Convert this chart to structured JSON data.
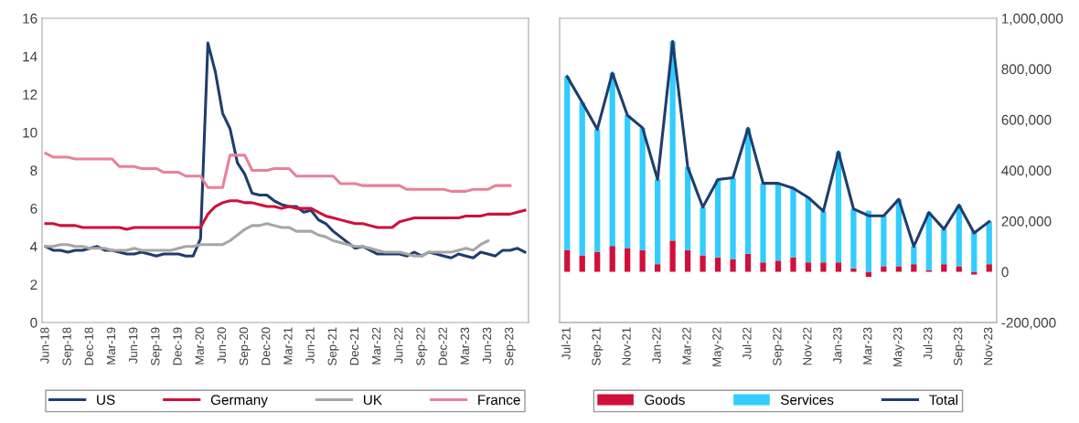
{
  "chart_data": [
    {
      "type": "line",
      "categories": [
        "Jun-18",
        null,
        null,
        "Sep-18",
        null,
        null,
        "Dec-18",
        null,
        null,
        "Mar-19",
        null,
        null,
        "Jun-19",
        null,
        null,
        "Sep-19",
        null,
        null,
        "Dec-19",
        null,
        null,
        "Mar-20",
        null,
        null,
        "Jun-20",
        null,
        null,
        "Sep-20",
        null,
        null,
        "Dec-20",
        null,
        null,
        "Mar-21",
        null,
        null,
        "Jun-21",
        null,
        null,
        "Sep-21",
        null,
        null,
        "Dec-21",
        null,
        null,
        "Mar-22",
        null,
        null,
        "Jun-22",
        null,
        null,
        "Sep-22",
        null,
        null,
        "Dec-22",
        null,
        null,
        "Mar-23",
        null,
        null,
        "Jun-23",
        null,
        null,
        "Sep-23",
        null,
        null
      ],
      "ylim": [
        0,
        16
      ],
      "yticks": [
        0,
        2,
        4,
        6,
        8,
        10,
        12,
        14,
        16
      ],
      "grid": false,
      "legend": "bottom",
      "marker": "none",
      "line_style": "solid",
      "series": [
        {
          "name": "US",
          "color": "#1f3d6e",
          "values": [
            4.0,
            3.8,
            3.8,
            3.7,
            3.8,
            3.8,
            3.9,
            4.0,
            3.8,
            3.8,
            3.7,
            3.6,
            3.6,
            3.7,
            3.6,
            3.5,
            3.6,
            3.6,
            3.6,
            3.5,
            3.5,
            4.4,
            14.7,
            13.2,
            11.0,
            10.2,
            8.4,
            7.8,
            6.8,
            6.7,
            6.7,
            6.4,
            6.2,
            6.1,
            6.1,
            5.8,
            5.9,
            5.4,
            5.2,
            4.8,
            4.5,
            4.2,
            3.9,
            4.0,
            3.8,
            3.6,
            3.6,
            3.6,
            3.6,
            3.5,
            3.7,
            3.5,
            3.7,
            3.6,
            3.5,
            3.4,
            3.6,
            3.5,
            3.4,
            3.7,
            3.6,
            3.5,
            3.8,
            3.8,
            3.9,
            3.7
          ]
        },
        {
          "name": "Germany",
          "color": "#d0103a",
          "values": [
            5.2,
            5.2,
            5.1,
            5.1,
            5.1,
            5.0,
            5.0,
            5.0,
            5.0,
            5.0,
            5.0,
            4.9,
            5.0,
            5.0,
            5.0,
            5.0,
            5.0,
            5.0,
            5.0,
            5.0,
            5.0,
            5.0,
            5.7,
            6.1,
            6.3,
            6.4,
            6.4,
            6.3,
            6.3,
            6.2,
            6.1,
            6.1,
            6.0,
            6.1,
            6.0,
            6.0,
            6.0,
            5.8,
            5.6,
            5.5,
            5.4,
            5.3,
            5.2,
            5.2,
            5.1,
            5.0,
            5.0,
            5.0,
            5.3,
            5.4,
            5.5,
            5.5,
            5.5,
            5.5,
            5.5,
            5.5,
            5.5,
            5.6,
            5.6,
            5.6,
            5.7,
            5.7,
            5.7,
            5.7,
            5.8,
            5.9
          ]
        },
        {
          "name": "UK",
          "color": "#a6a6a6",
          "values": [
            4.0,
            4.0,
            4.1,
            4.1,
            4.0,
            4.0,
            3.9,
            3.9,
            3.9,
            3.8,
            3.8,
            3.8,
            3.9,
            3.8,
            3.8,
            3.8,
            3.8,
            3.8,
            3.9,
            4.0,
            4.0,
            4.1,
            4.1,
            4.1,
            4.1,
            4.3,
            4.6,
            4.9,
            5.1,
            5.1,
            5.2,
            5.1,
            5.0,
            5.0,
            4.8,
            4.8,
            4.8,
            4.6,
            4.5,
            4.3,
            4.2,
            4.1,
            4.0,
            4.0,
            3.9,
            3.8,
            3.7,
            3.7,
            3.7,
            3.6,
            3.5,
            3.5,
            3.7,
            3.7,
            3.7,
            3.7,
            3.8,
            3.9,
            3.8,
            4.1,
            4.3,
            null,
            null,
            null,
            null,
            null
          ]
        },
        {
          "name": "France",
          "color": "#e8819a",
          "values": [
            8.9,
            8.7,
            8.7,
            8.7,
            8.6,
            8.6,
            8.6,
            8.6,
            8.6,
            8.6,
            8.2,
            8.2,
            8.2,
            8.1,
            8.1,
            8.1,
            7.9,
            7.9,
            7.9,
            7.7,
            7.7,
            7.7,
            7.1,
            7.1,
            7.1,
            8.8,
            8.8,
            8.8,
            8.0,
            8.0,
            8.0,
            8.1,
            8.1,
            8.1,
            7.7,
            7.7,
            7.7,
            7.7,
            7.7,
            7.7,
            7.3,
            7.3,
            7.3,
            7.2,
            7.2,
            7.2,
            7.2,
            7.2,
            7.2,
            7.0,
            7.0,
            7.0,
            7.0,
            7.0,
            7.0,
            6.9,
            6.9,
            6.9,
            7.0,
            7.0,
            7.0,
            7.2,
            7.2,
            7.2,
            null,
            null
          ]
        }
      ]
    },
    {
      "type": "bar",
      "stacked": true,
      "categories": [
        "Jul-21",
        null,
        "Sep-21",
        null,
        "Nov-21",
        null,
        "Jan-22",
        null,
        "Mar-22",
        null,
        "May-22",
        null,
        "Jul-22",
        null,
        "Sep-22",
        null,
        "Nov-22",
        null,
        "Jan-23",
        null,
        "Mar-23",
        null,
        "May-23",
        null,
        "Jul-23",
        null,
        "Sep-23",
        null,
        "Nov-23"
      ],
      "ylim": [
        -200000,
        1000000
      ],
      "yticks": [
        {
          "value": -200000,
          "label": "-200,000"
        },
        {
          "value": 0,
          "label": "0"
        },
        {
          "value": 200000,
          "label": "200,000"
        },
        {
          "value": 400000,
          "label": "400,000"
        },
        {
          "value": 600000,
          "label": "600,000"
        },
        {
          "value": 800000,
          "label": "800,000"
        },
        {
          "value": 1000000,
          "label": "1,000,000"
        }
      ],
      "grid": false,
      "legend": "bottom",
      "series": [
        {
          "name": "Goods",
          "color": "#d0103a",
          "values": [
            86000,
            65000,
            79000,
            102000,
            94000,
            86000,
            30000,
            123000,
            86000,
            65000,
            57000,
            50000,
            71000,
            37000,
            44000,
            57000,
            37000,
            37000,
            37000,
            14000,
            -20000,
            22000,
            22000,
            30000,
            7000,
            30000,
            22000,
            -11000,
            30000
          ]
        },
        {
          "name": "Services",
          "color": "#33ccff",
          "values": [
            684000,
            603000,
            483000,
            682000,
            523000,
            482000,
            334000,
            786000,
            327000,
            190000,
            307000,
            321000,
            495000,
            312000,
            305000,
            273000,
            256000,
            202000,
            436000,
            234000,
            241000,
            199000,
            264000,
            70000,
            227000,
            138000,
            241000,
            164000,
            168000
          ]
        },
        {
          "name": "Total",
          "type": "line",
          "color": "#1f3d6e",
          "values": [
            770000,
            668000,
            562000,
            784000,
            617000,
            568000,
            364000,
            909000,
            413000,
            255000,
            364000,
            371000,
            566000,
            349000,
            349000,
            330000,
            293000,
            239000,
            473000,
            248000,
            221000,
            221000,
            286000,
            100000,
            234000,
            168000,
            263000,
            153000,
            198000
          ]
        }
      ]
    }
  ]
}
